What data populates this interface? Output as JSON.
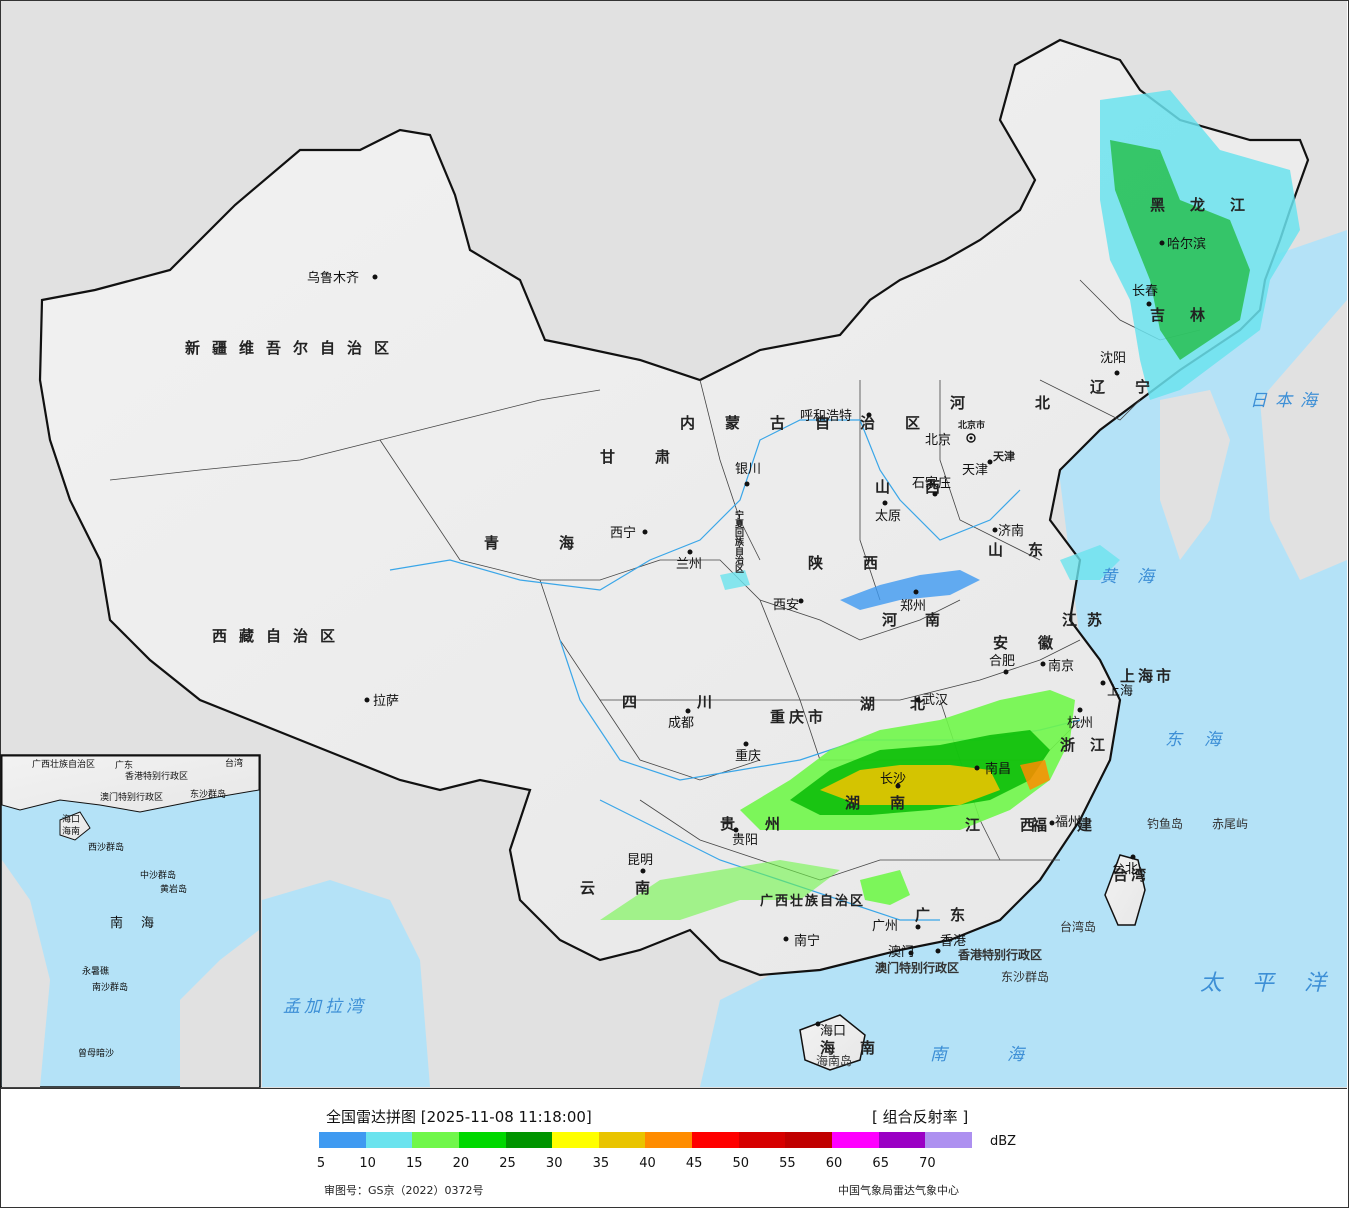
{
  "legend": {
    "title": "全国雷达拼图 [2025-11-08 11:18:00]",
    "product": "[ 组合反射率 ]",
    "unit": "dBZ",
    "ticks": [
      "5",
      "10",
      "15",
      "20",
      "25",
      "30",
      "35",
      "40",
      "45",
      "50",
      "55",
      "60",
      "65",
      "70"
    ],
    "colors": [
      "#3f9af1",
      "#6be3ee",
      "#70f74a",
      "#00d800",
      "#009400",
      "#ffff00",
      "#e9c400",
      "#ff8c00",
      "#ff0000",
      "#d60000",
      "#c00000",
      "#ff00ff",
      "#9a00c4",
      "#ad90f0"
    ],
    "approval": "审图号：GS京（2022）0372号",
    "source": "中国气象局雷达气象中心"
  },
  "map": {
    "provinces": [
      "新疆维吾尔自治区",
      "西藏自治区",
      "青海",
      "甘肃",
      "内蒙古自治区",
      "黑龙江",
      "吉林",
      "辽宁",
      "河北",
      "山西",
      "陕西",
      "河南",
      "山东",
      "江苏",
      "安徽",
      "湖北",
      "四川",
      "重庆市",
      "贵州",
      "云南",
      "湖南",
      "江西",
      "浙江",
      "福建",
      "广东",
      "广西壮族自治区",
      "海南",
      "宁夏回族自治区",
      "上海市",
      "天津",
      "北京市",
      "台湾"
    ],
    "cities": [
      "乌鲁木齐",
      "拉萨",
      "西宁",
      "兰州",
      "银川",
      "成都",
      "重庆",
      "贵阳",
      "昆明",
      "南宁",
      "广州",
      "海口",
      "香港",
      "澳门",
      "长沙",
      "南昌",
      "福州",
      "杭州",
      "南京",
      "合肥",
      "武汉",
      "郑州",
      "西安",
      "太原",
      "石家庄",
      "济南",
      "天津",
      "北京",
      "沈阳",
      "长春",
      "哈尔滨",
      "呼和浩特",
      "上海",
      "台北"
    ],
    "seas": [
      "日本海",
      "黄海",
      "东海",
      "太平洋",
      "南海",
      "孟加拉湾"
    ],
    "islands": [
      "钓鱼岛",
      "赤尾屿",
      "台湾岛",
      "东沙群岛",
      "海南岛",
      "香港特别行政区",
      "澳门特别行政区"
    ],
    "inset": [
      "广西壮族自治区",
      "广东",
      "香港特别行政区",
      "澳门特别行政区",
      "台湾",
      "海口",
      "海南",
      "东沙群岛",
      "西沙群岛",
      "中沙群岛",
      "南海",
      "黄岩岛",
      "南沙群岛",
      "永暑礁",
      "曾母暗沙"
    ]
  }
}
